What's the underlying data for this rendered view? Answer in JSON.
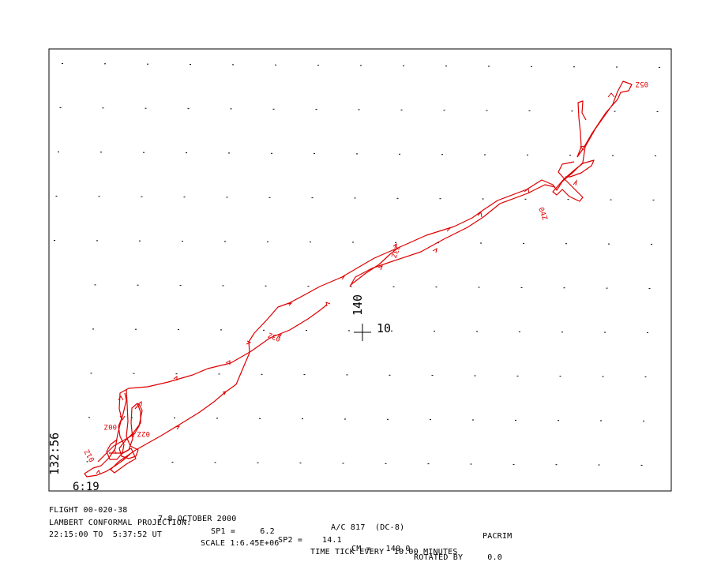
{
  "map": {
    "center_lon_label": "140",
    "center_lat_label": "10",
    "corner_lon_label": "132:56",
    "corner_lat_label": "6:19",
    "track_color": "#dd0000",
    "time_labels": [
      "05Z",
      "04Z",
      "23Z",
      "03Z",
      "00Z",
      "02Z",
      "01Z"
    ]
  },
  "footer": {
    "line1": {
      "flight": "FLIGHT 00-020-38",
      "date": "7-8 OCTOBER 2000",
      "aircraft": "A/C 817  (DC-8)",
      "project": "PACRIM"
    },
    "line2": {
      "projection": "LAMBERT CONFORMAL PROJECTION:",
      "sp1": "SP1 =     6.2",
      "sp2": "SP2 =    14.1",
      "cm": "CM =   140.0",
      "rotated": "ROTATED BY     0.0"
    },
    "line3": {
      "time_range": "22:15:00 TO  5:37:52 UT",
      "scale": "SCALE 1:6.45E+06",
      "tick": "TIME TICK EVERY  10.00 MINUTES"
    }
  }
}
